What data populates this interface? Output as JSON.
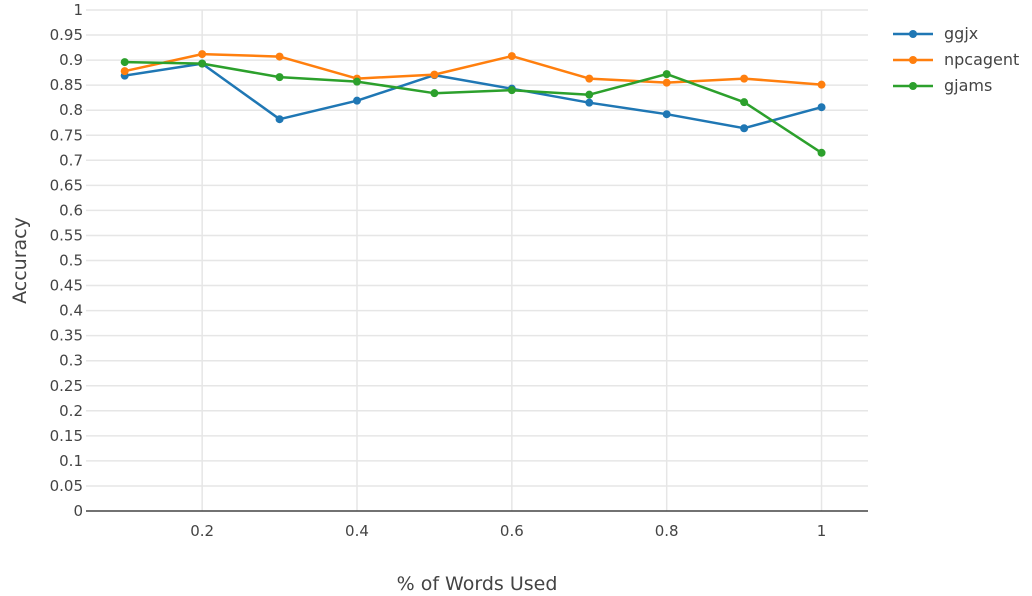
{
  "chart_data": {
    "type": "line",
    "xlabel": "% of Words Used",
    "ylabel": "Accuracy",
    "xlim": [
      0.05,
      1.06
    ],
    "ylim": [
      0,
      1
    ],
    "x_ticks": [
      0.2,
      0.4,
      0.6,
      0.8,
      1
    ],
    "x_tick_labels": [
      "0.2",
      "0.4",
      "0.6",
      "0.8",
      "1"
    ],
    "y_ticks": [
      0,
      0.05,
      0.1,
      0.15,
      0.2,
      0.25,
      0.3,
      0.35,
      0.4,
      0.45,
      0.5,
      0.55,
      0.6,
      0.65,
      0.7,
      0.75,
      0.8,
      0.85,
      0.9,
      0.95,
      1
    ],
    "y_tick_labels": [
      "0",
      "0.05",
      "0.1",
      "0.15",
      "0.2",
      "0.25",
      "0.3",
      "0.35",
      "0.4",
      "0.45",
      "0.5",
      "0.55",
      "0.6",
      "0.65",
      "0.7",
      "0.75",
      "0.8",
      "0.85",
      "0.9",
      "0.95",
      "1"
    ],
    "grid": true,
    "legend_position": "top-right",
    "x": [
      0.1,
      0.2,
      0.3,
      0.4,
      0.5,
      0.6,
      0.7,
      0.8,
      0.9,
      1.0
    ],
    "series": [
      {
        "name": "ggjx",
        "color": "#1f77b4",
        "values": [
          0.869,
          0.893,
          0.782,
          0.819,
          0.87,
          0.843,
          0.815,
          0.792,
          0.764,
          0.806
        ]
      },
      {
        "name": "npcagent",
        "color": "#ff7f0e",
        "values": [
          0.878,
          0.912,
          0.907,
          0.863,
          0.871,
          0.908,
          0.863,
          0.855,
          0.863,
          0.851
        ]
      },
      {
        "name": "gjams",
        "color": "#2ca02c",
        "values": [
          0.896,
          0.893,
          0.866,
          0.857,
          0.834,
          0.84,
          0.831,
          0.872,
          0.816,
          0.715
        ]
      }
    ]
  }
}
